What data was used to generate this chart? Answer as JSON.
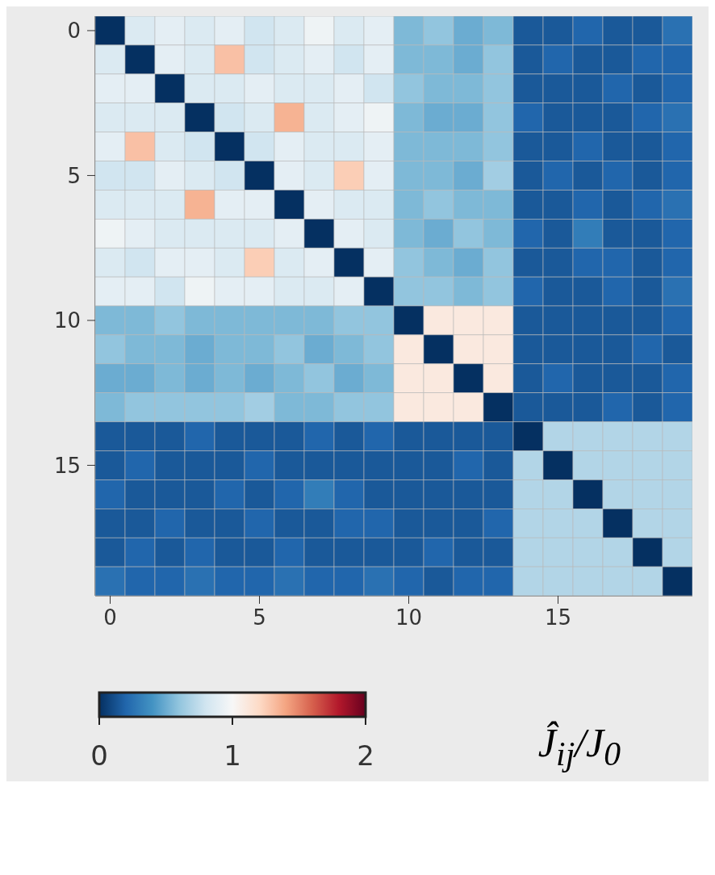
{
  "chart_data": {
    "type": "heatmap",
    "clabel": "Ĵ$_{ij}$/J$_{0}$",
    "categories": [
      "0",
      null,
      null,
      null,
      null,
      "5",
      null,
      null,
      null,
      null,
      "10",
      null,
      null,
      null,
      null,
      "15",
      null,
      null,
      null,
      null
    ],
    "y_categories": [
      "0",
      null,
      null,
      null,
      null,
      "5",
      null,
      null,
      null,
      null,
      "10",
      null,
      null,
      null,
      null,
      "15",
      null,
      null,
      null,
      null
    ],
    "clim": [
      0,
      2
    ],
    "cticks": [
      0,
      1,
      2
    ],
    "cells": [
      [
        0,
        0.85,
        0.9,
        0.85,
        0.9,
        0.8,
        0.85,
        0.95,
        0.85,
        0.9,
        0.55,
        0.6,
        0.5,
        0.55,
        0.15,
        0.15,
        0.2,
        0.15,
        0.15,
        0.25
      ],
      [
        0.85,
        0,
        0.9,
        0.85,
        1.3,
        0.8,
        0.85,
        0.9,
        0.8,
        0.9,
        0.55,
        0.55,
        0.5,
        0.6,
        0.15,
        0.2,
        0.15,
        0.15,
        0.2,
        0.2
      ],
      [
        0.9,
        0.9,
        0,
        0.85,
        0.85,
        0.9,
        0.85,
        0.85,
        0.9,
        0.8,
        0.6,
        0.55,
        0.55,
        0.6,
        0.15,
        0.15,
        0.15,
        0.2,
        0.15,
        0.2
      ],
      [
        0.85,
        0.85,
        0.85,
        0,
        0.8,
        0.85,
        1.35,
        0.85,
        0.9,
        0.95,
        0.55,
        0.5,
        0.5,
        0.6,
        0.2,
        0.15,
        0.15,
        0.15,
        0.2,
        0.25
      ],
      [
        0.9,
        1.3,
        0.85,
        0.8,
        0,
        0.8,
        0.9,
        0.85,
        0.85,
        0.9,
        0.55,
        0.55,
        0.55,
        0.6,
        0.15,
        0.15,
        0.2,
        0.15,
        0.15,
        0.2
      ],
      [
        0.8,
        0.8,
        0.9,
        0.85,
        0.8,
        0,
        0.9,
        0.85,
        1.25,
        0.9,
        0.55,
        0.55,
        0.5,
        0.65,
        0.15,
        0.2,
        0.15,
        0.2,
        0.15,
        0.2
      ],
      [
        0.85,
        0.85,
        0.85,
        1.35,
        0.9,
        0.9,
        0,
        0.9,
        0.85,
        0.85,
        0.55,
        0.6,
        0.55,
        0.55,
        0.15,
        0.15,
        0.2,
        0.15,
        0.2,
        0.25
      ],
      [
        0.95,
        0.9,
        0.85,
        0.85,
        0.85,
        0.85,
        0.9,
        0,
        0.9,
        0.85,
        0.55,
        0.5,
        0.6,
        0.55,
        0.2,
        0.15,
        0.3,
        0.15,
        0.15,
        0.2
      ],
      [
        0.85,
        0.8,
        0.9,
        0.9,
        0.85,
        1.25,
        0.85,
        0.9,
        0,
        0.9,
        0.6,
        0.55,
        0.5,
        0.6,
        0.15,
        0.15,
        0.2,
        0.2,
        0.15,
        0.2
      ],
      [
        0.9,
        0.9,
        0.8,
        0.95,
        0.9,
        0.9,
        0.85,
        0.85,
        0.9,
        0,
        0.6,
        0.6,
        0.55,
        0.6,
        0.2,
        0.15,
        0.15,
        0.2,
        0.15,
        0.25
      ],
      [
        0.55,
        0.55,
        0.6,
        0.55,
        0.55,
        0.55,
        0.55,
        0.55,
        0.6,
        0.6,
        0,
        1.1,
        1.1,
        1.1,
        0.15,
        0.15,
        0.15,
        0.15,
        0.15,
        0.2
      ],
      [
        0.6,
        0.55,
        0.55,
        0.5,
        0.55,
        0.55,
        0.6,
        0.5,
        0.55,
        0.6,
        1.1,
        0,
        1.1,
        1.1,
        0.15,
        0.15,
        0.15,
        0.15,
        0.2,
        0.15
      ],
      [
        0.5,
        0.5,
        0.55,
        0.5,
        0.55,
        0.5,
        0.55,
        0.6,
        0.5,
        0.55,
        1.1,
        1.1,
        0,
        1.1,
        0.15,
        0.2,
        0.15,
        0.15,
        0.15,
        0.2
      ],
      [
        0.55,
        0.6,
        0.6,
        0.6,
        0.6,
        0.65,
        0.55,
        0.55,
        0.6,
        0.6,
        1.1,
        1.1,
        1.1,
        0,
        0.15,
        0.15,
        0.15,
        0.2,
        0.15,
        0.2
      ],
      [
        0.15,
        0.15,
        0.15,
        0.2,
        0.15,
        0.15,
        0.15,
        0.2,
        0.15,
        0.2,
        0.15,
        0.15,
        0.15,
        0.15,
        0,
        0.7,
        0.7,
        0.7,
        0.7,
        0.7
      ],
      [
        0.15,
        0.2,
        0.15,
        0.15,
        0.15,
        0.2,
        0.15,
        0.15,
        0.15,
        0.15,
        0.15,
        0.15,
        0.2,
        0.15,
        0.7,
        0,
        0.7,
        0.7,
        0.7,
        0.7
      ],
      [
        0.2,
        0.15,
        0.15,
        0.15,
        0.2,
        0.15,
        0.2,
        0.3,
        0.2,
        0.15,
        0.15,
        0.15,
        0.15,
        0.15,
        0.7,
        0.7,
        0,
        0.7,
        0.7,
        0.7
      ],
      [
        0.15,
        0.15,
        0.2,
        0.15,
        0.15,
        0.2,
        0.15,
        0.15,
        0.2,
        0.2,
        0.15,
        0.15,
        0.15,
        0.2,
        0.7,
        0.7,
        0.7,
        0,
        0.7,
        0.7
      ],
      [
        0.15,
        0.2,
        0.15,
        0.2,
        0.15,
        0.15,
        0.2,
        0.15,
        0.15,
        0.15,
        0.15,
        0.2,
        0.15,
        0.15,
        0.7,
        0.7,
        0.7,
        0.7,
        0,
        0.7
      ],
      [
        0.25,
        0.2,
        0.2,
        0.25,
        0.2,
        0.2,
        0.25,
        0.2,
        0.2,
        0.25,
        0.2,
        0.15,
        0.2,
        0.2,
        0.7,
        0.7,
        0.7,
        0.7,
        0.7,
        0
      ]
    ]
  }
}
